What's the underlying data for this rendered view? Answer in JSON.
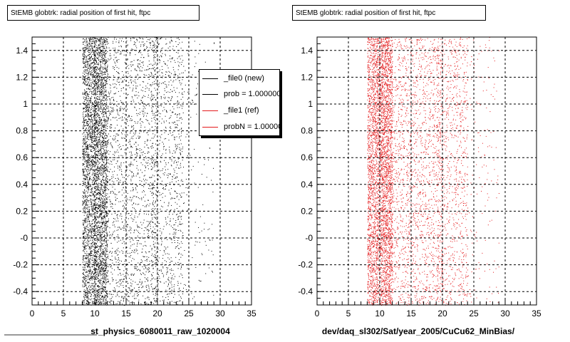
{
  "panels": [
    {
      "title": "StEMB globtrk: radial position of first hit, ftpc",
      "xlabel": "st_physics_6080011_raw_1020004",
      "color": "#000000",
      "seed": 12345
    },
    {
      "title": "StEMB globtrk: radial position of first hit, ftpc",
      "xlabel": "dev/daq_sl302/Sat/year_2005/CuCu62_MinBias/",
      "color": "#e41a1c",
      "seed": 98765
    }
  ],
  "legend": {
    "items": [
      {
        "label": "_file0 (new)",
        "color": "#000000"
      },
      {
        "label": "prob = 1.000000",
        "color": "#000000"
      },
      {
        "label": "_file1 (ref)",
        "color": "#e41a1c"
      },
      {
        "label": "probN = 1.000000",
        "color": "#e41a1c"
      }
    ]
  },
  "chart_data": [
    {
      "type": "scatter",
      "title": "StEMB globtrk: radial position of first hit, ftpc",
      "xlabel": "st_physics_6080011_raw_1020004",
      "ylabel": "",
      "xlim": [
        0,
        35
      ],
      "ylim": [
        -0.5,
        1.5
      ],
      "xticks": [
        "0",
        "5",
        "10",
        "15",
        "20",
        "25",
        "30",
        "35"
      ],
      "yticks": [
        "-0.4",
        "-0.2",
        "-0",
        "0.2",
        "0.4",
        "0.6",
        "0.8",
        "1",
        "1.2",
        "1.4"
      ],
      "grid": true,
      "legend_position": "top-right",
      "distribution": {
        "x_dense_range": [
          8,
          22
        ],
        "x_sparse_max": 29,
        "y_range": [
          -0.5,
          1.5
        ]
      },
      "series": [
        {
          "name": "_file0 (new)",
          "color": "#000000"
        }
      ]
    },
    {
      "type": "scatter",
      "title": "StEMB globtrk: radial position of first hit, ftpc",
      "xlabel": "dev/daq_sl302/Sat/year_2005/CuCu62_MinBias/",
      "ylabel": "",
      "xlim": [
        0,
        35
      ],
      "ylim": [
        -0.5,
        1.5
      ],
      "xticks": [
        "0",
        "5",
        "10",
        "15",
        "20",
        "25",
        "30",
        "35"
      ],
      "yticks": [
        "-0.4",
        "-0.2",
        "-0",
        "0.2",
        "0.4",
        "0.6",
        "0.8",
        "1",
        "1.2",
        "1.4"
      ],
      "grid": true,
      "distribution": {
        "x_dense_range": [
          8,
          22
        ],
        "x_sparse_max": 29,
        "y_range": [
          -0.5,
          1.5
        ]
      },
      "series": [
        {
          "name": "_file1 (ref)",
          "color": "#e41a1c"
        }
      ]
    }
  ]
}
